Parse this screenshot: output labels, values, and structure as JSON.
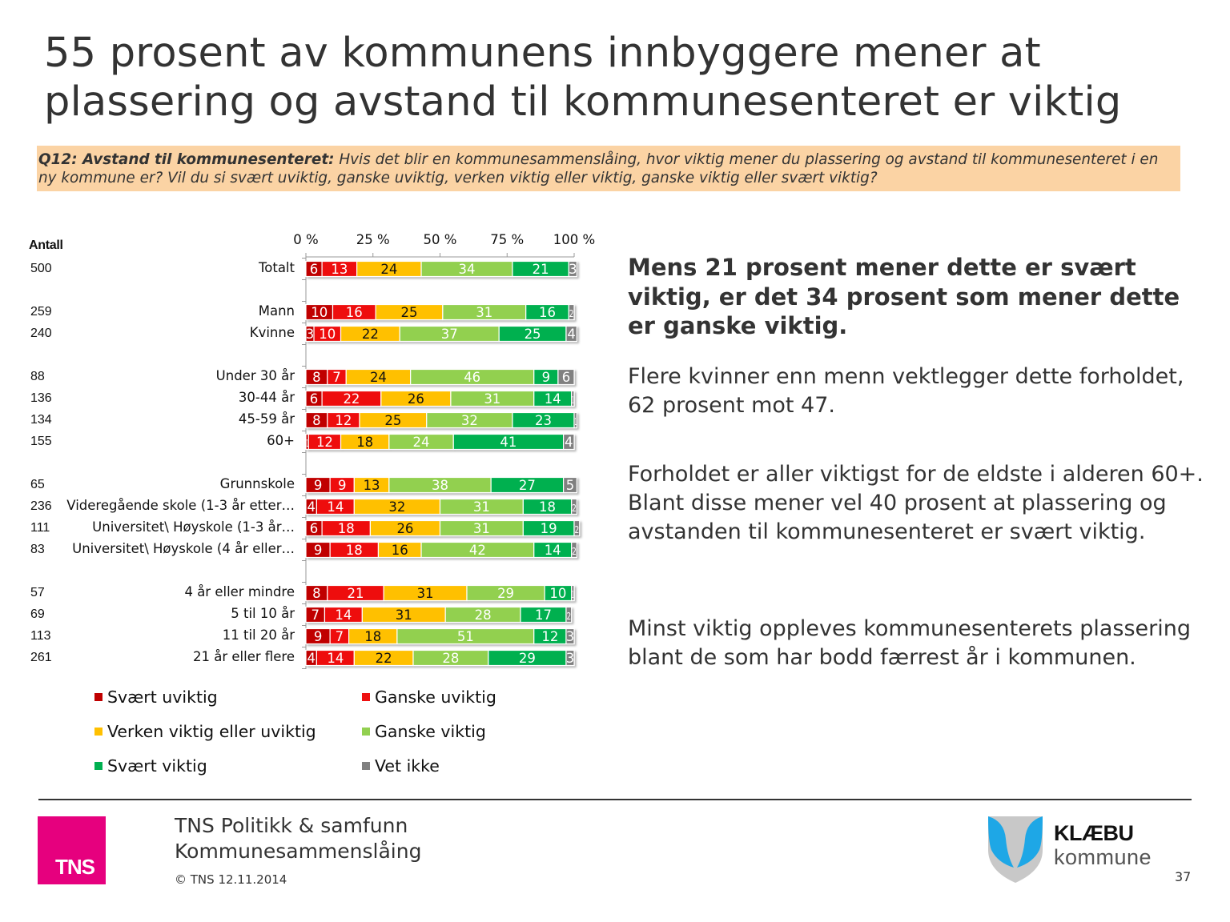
{
  "title": "55 prosent av kommunens innbyggere mener at plassering og avstand til kommunesenteret er viktig",
  "question": {
    "label": "Q12: Avstand til kommunesenteret:",
    "text": " Hvis det blir en kommunesammenslåing, hvor viktig mener du plassering og avstand til kommunesenteret i en ny kommune er? Vil du si svært uviktig, ganske uviktig, verken viktig eller viktig, ganske viktig eller svært viktig?"
  },
  "antall_label": "Antall",
  "chart_data": {
    "type": "bar",
    "orientation": "horizontal",
    "stacked": true,
    "xlim": [
      0,
      100
    ],
    "x_ticks": [
      "0 %",
      "25 %",
      "50 %",
      "75 %",
      "100 %"
    ],
    "x_tick_values": [
      0,
      25,
      50,
      75,
      100
    ],
    "categories": [
      "Totalt",
      "Mann",
      "Kvinne",
      "Under 30 år",
      "30-44 år",
      "45-59 år",
      "60+",
      "Grunnskole",
      "Videregående skole (1-3 år etter…",
      "Universitet\\ Høyskole (1-3 år…",
      "Universitet\\ Høyskole (4 år eller…",
      "4 år eller mindre",
      "5 til 10 år",
      "11 til 20 år",
      "21 år eller flere"
    ],
    "group_index": [
      0,
      1,
      1,
      2,
      2,
      2,
      2,
      3,
      3,
      3,
      3,
      4,
      4,
      4,
      4
    ],
    "antall": [
      "500",
      "259",
      "240",
      "88",
      "136",
      "134",
      "155",
      "65",
      "236",
      "111",
      "83",
      "57",
      "69",
      "113",
      "261"
    ],
    "series": [
      {
        "name": "Svært uviktig",
        "color": "#c00000",
        "label_color": "#ffffff",
        "values": [
          6,
          10,
          3,
          8,
          6,
          8,
          1,
          9,
          4,
          6,
          9,
          8,
          7,
          9,
          4
        ]
      },
      {
        "name": "Ganske uviktig",
        "color": "#ee1111",
        "label_color": "#ffffff",
        "values": [
          13,
          16,
          10,
          7,
          22,
          12,
          12,
          9,
          14,
          18,
          18,
          21,
          14,
          7,
          14
        ]
      },
      {
        "name": "Verken viktig eller uviktig",
        "color": "#ffc000",
        "label_color": "#111111",
        "values": [
          24,
          25,
          22,
          24,
          26,
          25,
          18,
          13,
          32,
          26,
          16,
          31,
          31,
          18,
          22
        ]
      },
      {
        "name": "Ganske viktig",
        "color": "#92d050",
        "label_color": "#ffffff",
        "values": [
          34,
          31,
          37,
          46,
          31,
          32,
          24,
          38,
          31,
          31,
          42,
          29,
          28,
          51,
          28
        ]
      },
      {
        "name": "Svært viktig",
        "color": "#00b050",
        "label_color": "#ffffff",
        "values": [
          21,
          16,
          25,
          9,
          14,
          23,
          41,
          27,
          18,
          19,
          14,
          10,
          17,
          12,
          29
        ]
      },
      {
        "name": "Vet ikke",
        "color": "#808080",
        "label_color": "#ffffff",
        "values": [
          3,
          2,
          4,
          6,
          1,
          1,
          4,
          5,
          2,
          2,
          2,
          1,
          2,
          3,
          3
        ]
      }
    ],
    "legend_position": "bottom"
  },
  "side": {
    "headline": "Mens 21 prosent mener dette er svært viktig, er det 34 prosent som mener dette er ganske viktig.",
    "p1": "Flere kvinner enn menn vektlegger dette forholdet, 62 prosent mot 47.",
    "p2": "Forholdet er aller viktigst for de eldste i alderen 60+. Blant disse mener vel 40 prosent at plassering og avstanden til kommunesenteret er svært viktig.",
    "p3": "Minst viktig oppleves kommunesenterets plassering blant de som har bodd færrest år i kommunen."
  },
  "footer": {
    "logo_text": "TNS",
    "line1": "TNS Politikk & samfunn",
    "line2": "Kommunesammenslåing",
    "copyright": "© TNS 12.11.2014",
    "client_name": "KLÆBU",
    "client_sub": "kommune",
    "page_number": "37"
  },
  "colors": {
    "tns_pink": "#e6007e",
    "question_bg": "#fbd3a4",
    "shield_blue": "#1ea7e6",
    "shield_gray": "#c8c8c8"
  }
}
